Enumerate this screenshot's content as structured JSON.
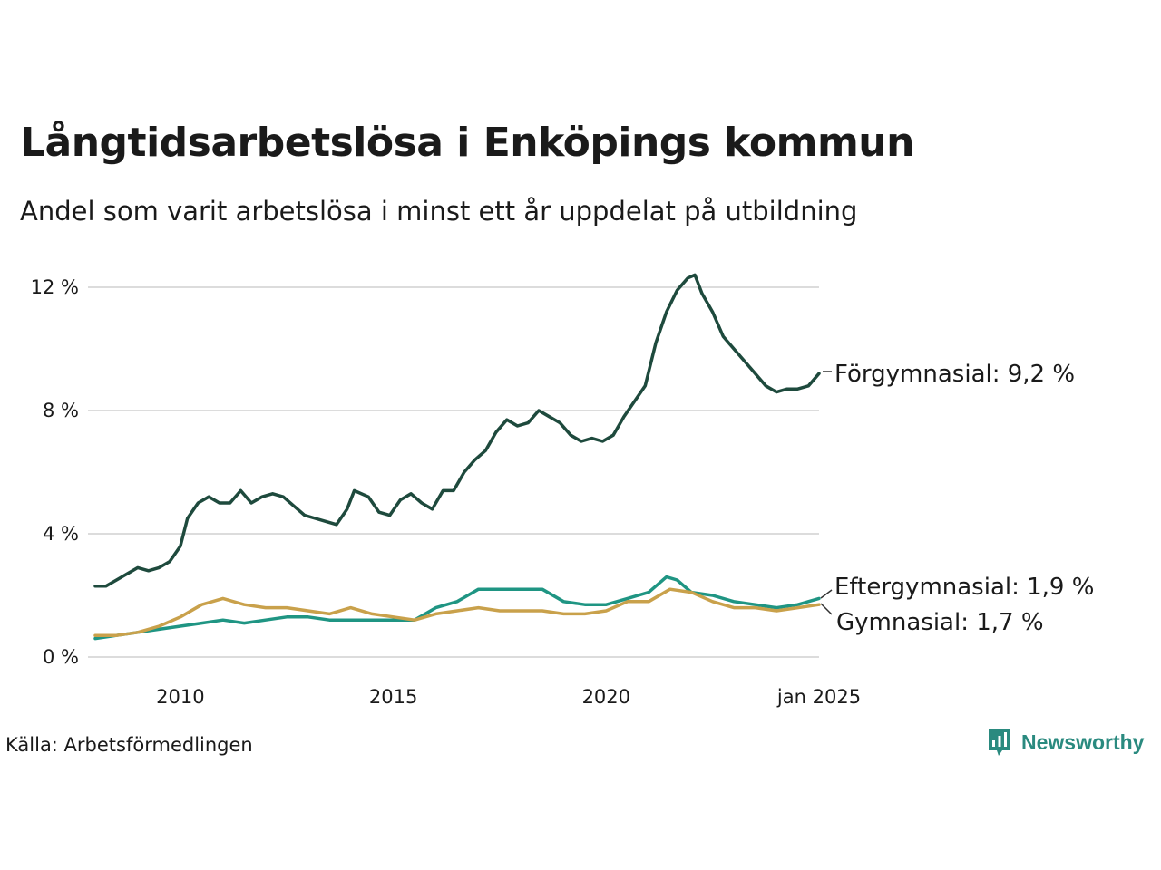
{
  "title": "Långtidsarbetslösa i Enköpings kommun",
  "subtitle": "Andel som varit arbetslösa i minst ett år uppdelat på utbildning",
  "source": "Källa: Arbetsförmedlingen",
  "brand": {
    "name": "Newsworthy",
    "icon": "newsworthy-logo-icon",
    "color": "#2a8a7f"
  },
  "chart_data": {
    "type": "line",
    "x_range": [
      "2008-01",
      "2025-01"
    ],
    "x_ticks": [
      {
        "x": "2010-01",
        "label": "2010"
      },
      {
        "x": "2015-01",
        "label": "2015"
      },
      {
        "x": "2020-01",
        "label": "2020"
      },
      {
        "x": "2025-01",
        "label": "jan 2025"
      }
    ],
    "ylim": [
      0,
      12.4
    ],
    "y_ticks": [
      {
        "value": 0,
        "label": "0 %"
      },
      {
        "value": 4,
        "label": "4 %"
      },
      {
        "value": 8,
        "label": "8 %"
      },
      {
        "value": 12,
        "label": "12 %"
      }
    ],
    "grid": "horizontal",
    "series": [
      {
        "name": "Förgymnasial",
        "end_label": "Förgymnasial: 9,2 %",
        "color": "#1e4a3d",
        "points": [
          [
            "2008-01",
            2.3
          ],
          [
            "2008-04",
            2.3
          ],
          [
            "2008-07",
            2.5
          ],
          [
            "2008-10",
            2.7
          ],
          [
            "2009-01",
            2.9
          ],
          [
            "2009-04",
            2.8
          ],
          [
            "2009-07",
            2.9
          ],
          [
            "2009-10",
            3.1
          ],
          [
            "2010-01",
            3.6
          ],
          [
            "2010-03",
            4.5
          ],
          [
            "2010-06",
            5.0
          ],
          [
            "2010-09",
            5.2
          ],
          [
            "2010-12",
            5.0
          ],
          [
            "2011-03",
            5.0
          ],
          [
            "2011-06",
            5.4
          ],
          [
            "2011-09",
            5.0
          ],
          [
            "2011-12",
            5.2
          ],
          [
            "2012-03",
            5.3
          ],
          [
            "2012-06",
            5.2
          ],
          [
            "2012-09",
            4.9
          ],
          [
            "2012-12",
            4.6
          ],
          [
            "2013-03",
            4.5
          ],
          [
            "2013-06",
            4.4
          ],
          [
            "2013-09",
            4.3
          ],
          [
            "2013-12",
            4.8
          ],
          [
            "2014-02",
            5.4
          ],
          [
            "2014-06",
            5.2
          ],
          [
            "2014-09",
            4.7
          ],
          [
            "2014-12",
            4.6
          ],
          [
            "2015-03",
            5.1
          ],
          [
            "2015-06",
            5.3
          ],
          [
            "2015-09",
            5.0
          ],
          [
            "2015-12",
            4.8
          ],
          [
            "2016-03",
            5.4
          ],
          [
            "2016-06",
            5.4
          ],
          [
            "2016-09",
            6.0
          ],
          [
            "2016-12",
            6.4
          ],
          [
            "2017-03",
            6.7
          ],
          [
            "2017-06",
            7.3
          ],
          [
            "2017-09",
            7.7
          ],
          [
            "2017-12",
            7.5
          ],
          [
            "2018-03",
            7.6
          ],
          [
            "2018-06",
            8.0
          ],
          [
            "2018-09",
            7.8
          ],
          [
            "2018-12",
            7.6
          ],
          [
            "2019-03",
            7.2
          ],
          [
            "2019-06",
            7.0
          ],
          [
            "2019-09",
            7.1
          ],
          [
            "2019-12",
            7.0
          ],
          [
            "2020-03",
            7.2
          ],
          [
            "2020-06",
            7.8
          ],
          [
            "2020-09",
            8.3
          ],
          [
            "2020-12",
            8.8
          ],
          [
            "2021-03",
            10.2
          ],
          [
            "2021-06",
            11.2
          ],
          [
            "2021-09",
            11.9
          ],
          [
            "2021-12",
            12.3
          ],
          [
            "2022-02",
            12.4
          ],
          [
            "2022-04",
            11.8
          ],
          [
            "2022-07",
            11.2
          ],
          [
            "2022-10",
            10.4
          ],
          [
            "2023-01",
            10.0
          ],
          [
            "2023-04",
            9.6
          ],
          [
            "2023-07",
            9.2
          ],
          [
            "2023-10",
            8.8
          ],
          [
            "2024-01",
            8.6
          ],
          [
            "2024-04",
            8.7
          ],
          [
            "2024-07",
            8.7
          ],
          [
            "2024-10",
            8.8
          ],
          [
            "2025-01",
            9.2
          ]
        ]
      },
      {
        "name": "Eftergymnasial",
        "end_label": "Eftergymnasial: 1,9 %",
        "color": "#1f9583",
        "points": [
          [
            "2008-01",
            0.6
          ],
          [
            "2008-07",
            0.7
          ],
          [
            "2009-01",
            0.8
          ],
          [
            "2009-07",
            0.9
          ],
          [
            "2010-01",
            1.0
          ],
          [
            "2010-07",
            1.1
          ],
          [
            "2011-01",
            1.2
          ],
          [
            "2011-07",
            1.1
          ],
          [
            "2012-01",
            1.2
          ],
          [
            "2012-07",
            1.3
          ],
          [
            "2013-01",
            1.3
          ],
          [
            "2013-07",
            1.2
          ],
          [
            "2014-01",
            1.2
          ],
          [
            "2014-07",
            1.2
          ],
          [
            "2015-01",
            1.2
          ],
          [
            "2015-07",
            1.2
          ],
          [
            "2016-01",
            1.6
          ],
          [
            "2016-07",
            1.8
          ],
          [
            "2017-01",
            2.2
          ],
          [
            "2017-07",
            2.2
          ],
          [
            "2018-01",
            2.2
          ],
          [
            "2018-07",
            2.2
          ],
          [
            "2019-01",
            1.8
          ],
          [
            "2019-07",
            1.7
          ],
          [
            "2020-01",
            1.7
          ],
          [
            "2020-07",
            1.9
          ],
          [
            "2021-01",
            2.1
          ],
          [
            "2021-06",
            2.6
          ],
          [
            "2021-09",
            2.5
          ],
          [
            "2022-01",
            2.1
          ],
          [
            "2022-07",
            2.0
          ],
          [
            "2023-01",
            1.8
          ],
          [
            "2023-07",
            1.7
          ],
          [
            "2024-01",
            1.6
          ],
          [
            "2024-07",
            1.7
          ],
          [
            "2025-01",
            1.9
          ]
        ]
      },
      {
        "name": "Gymnasial",
        "end_label": "Gymnasial: 1,7 %",
        "color": "#c9a14b",
        "points": [
          [
            "2008-01",
            0.7
          ],
          [
            "2008-07",
            0.7
          ],
          [
            "2009-01",
            0.8
          ],
          [
            "2009-07",
            1.0
          ],
          [
            "2010-01",
            1.3
          ],
          [
            "2010-07",
            1.7
          ],
          [
            "2011-01",
            1.9
          ],
          [
            "2011-07",
            1.7
          ],
          [
            "2012-01",
            1.6
          ],
          [
            "2012-07",
            1.6
          ],
          [
            "2013-01",
            1.5
          ],
          [
            "2013-07",
            1.4
          ],
          [
            "2014-01",
            1.6
          ],
          [
            "2014-07",
            1.4
          ],
          [
            "2015-01",
            1.3
          ],
          [
            "2015-07",
            1.2
          ],
          [
            "2016-01",
            1.4
          ],
          [
            "2016-07",
            1.5
          ],
          [
            "2017-01",
            1.6
          ],
          [
            "2017-07",
            1.5
          ],
          [
            "2018-01",
            1.5
          ],
          [
            "2018-07",
            1.5
          ],
          [
            "2019-01",
            1.4
          ],
          [
            "2019-07",
            1.4
          ],
          [
            "2020-01",
            1.5
          ],
          [
            "2020-07",
            1.8
          ],
          [
            "2021-01",
            1.8
          ],
          [
            "2021-07",
            2.2
          ],
          [
            "2022-01",
            2.1
          ],
          [
            "2022-07",
            1.8
          ],
          [
            "2023-01",
            1.6
          ],
          [
            "2023-07",
            1.6
          ],
          [
            "2024-01",
            1.5
          ],
          [
            "2024-07",
            1.6
          ],
          [
            "2025-01",
            1.7
          ]
        ]
      }
    ]
  }
}
